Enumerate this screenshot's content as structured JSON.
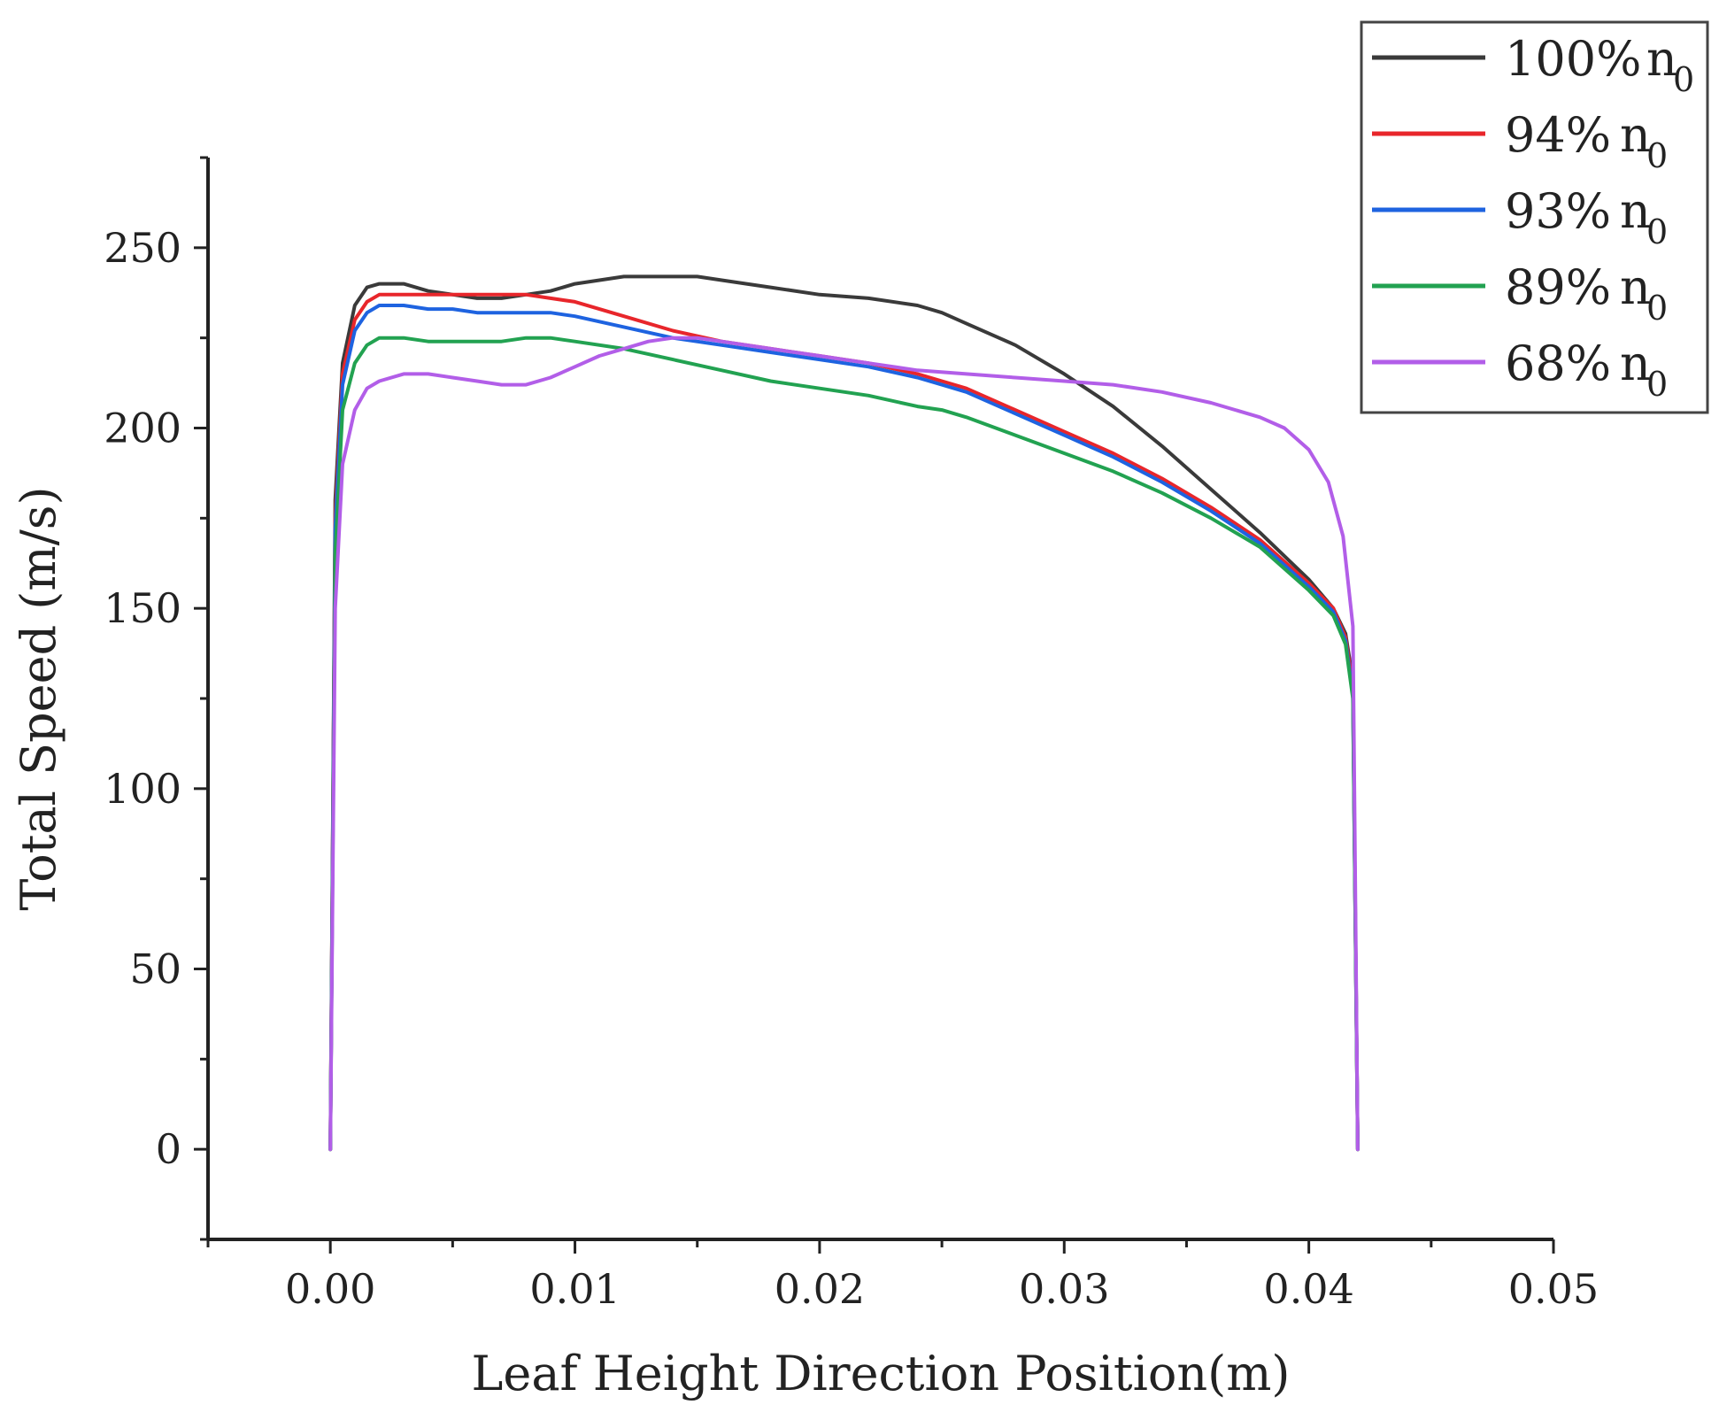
{
  "chart_data": {
    "type": "line",
    "title": "",
    "xlabel": "Leaf Height Direction Position(m)",
    "ylabel": "Total Speed (m/s)",
    "xlim": [
      -0.005,
      0.05
    ],
    "ylim": [
      -25,
      275
    ],
    "x_ticks": [
      0.0,
      0.01,
      0.02,
      0.03,
      0.04,
      0.05
    ],
    "x_tick_labels": [
      "0.00",
      "0.01",
      "0.02",
      "0.03",
      "0.04",
      "0.05"
    ],
    "y_ticks": [
      0,
      50,
      100,
      150,
      200,
      250
    ],
    "y_tick_labels": [
      "0",
      "50",
      "100",
      "150",
      "200",
      "250"
    ],
    "grid": false,
    "legend_position": "top-right",
    "series": [
      {
        "name": "100% n0",
        "label_main": "100%",
        "label_n": "n",
        "label_sub": "0",
        "color": "#3a3a3a",
        "x": [
          0.0,
          0.0002,
          0.0005,
          0.001,
          0.0015,
          0.002,
          0.003,
          0.004,
          0.005,
          0.006,
          0.007,
          0.008,
          0.009,
          0.01,
          0.011,
          0.012,
          0.013,
          0.014,
          0.015,
          0.016,
          0.018,
          0.02,
          0.022,
          0.024,
          0.025,
          0.026,
          0.028,
          0.03,
          0.032,
          0.034,
          0.036,
          0.038,
          0.04,
          0.041,
          0.0415,
          0.0418,
          0.042
        ],
        "y": [
          0,
          180,
          218,
          234,
          239,
          240,
          240,
          238,
          237,
          236,
          236,
          237,
          238,
          240,
          241,
          242,
          242,
          242,
          242,
          241,
          239,
          237,
          236,
          234,
          232,
          229,
          223,
          215,
          206,
          195,
          183,
          171,
          158,
          150,
          143,
          130,
          0
        ]
      },
      {
        "name": "94% n0",
        "label_main": "94%",
        "label_n": "n",
        "label_sub": "0",
        "color": "#e8262b",
        "x": [
          0.0,
          0.0002,
          0.0005,
          0.001,
          0.0015,
          0.002,
          0.003,
          0.004,
          0.005,
          0.006,
          0.007,
          0.008,
          0.009,
          0.01,
          0.012,
          0.014,
          0.016,
          0.018,
          0.02,
          0.022,
          0.024,
          0.025,
          0.026,
          0.028,
          0.03,
          0.032,
          0.034,
          0.036,
          0.038,
          0.04,
          0.041,
          0.0415,
          0.0418,
          0.042
        ],
        "y": [
          0,
          175,
          215,
          230,
          235,
          237,
          237,
          237,
          237,
          237,
          237,
          237,
          236,
          235,
          231,
          227,
          224,
          222,
          220,
          218,
          215,
          213,
          211,
          205,
          199,
          193,
          186,
          178,
          169,
          157,
          150,
          142,
          128,
          0
        ]
      },
      {
        "name": "93% n0",
        "label_main": "93%",
        "label_n": "n",
        "label_sub": "0",
        "color": "#1e63e0",
        "x": [
          0.0,
          0.0002,
          0.0005,
          0.001,
          0.0015,
          0.002,
          0.003,
          0.004,
          0.005,
          0.006,
          0.007,
          0.008,
          0.009,
          0.01,
          0.012,
          0.014,
          0.016,
          0.018,
          0.02,
          0.022,
          0.024,
          0.025,
          0.026,
          0.028,
          0.03,
          0.032,
          0.034,
          0.036,
          0.038,
          0.04,
          0.041,
          0.0415,
          0.0418,
          0.042
        ],
        "y": [
          0,
          172,
          212,
          227,
          232,
          234,
          234,
          233,
          233,
          232,
          232,
          232,
          232,
          231,
          228,
          225,
          223,
          221,
          219,
          217,
          214,
          212,
          210,
          204,
          198,
          192,
          185,
          177,
          168,
          156,
          149,
          141,
          126,
          0
        ]
      },
      {
        "name": "89% n0",
        "label_main": "89%",
        "label_n": "n",
        "label_sub": "0",
        "color": "#22a251",
        "x": [
          0.0,
          0.0002,
          0.0005,
          0.001,
          0.0015,
          0.002,
          0.003,
          0.004,
          0.005,
          0.006,
          0.007,
          0.008,
          0.009,
          0.01,
          0.012,
          0.014,
          0.016,
          0.018,
          0.02,
          0.022,
          0.024,
          0.025,
          0.026,
          0.028,
          0.03,
          0.032,
          0.034,
          0.036,
          0.038,
          0.04,
          0.041,
          0.0415,
          0.0418,
          0.042
        ],
        "y": [
          0,
          165,
          205,
          218,
          223,
          225,
          225,
          224,
          224,
          224,
          224,
          225,
          225,
          224,
          222,
          219,
          216,
          213,
          211,
          209,
          206,
          205,
          203,
          198,
          193,
          188,
          182,
          175,
          167,
          155,
          148,
          140,
          125,
          0
        ]
      },
      {
        "name": "68% n0",
        "label_main": "68%",
        "label_n": "n",
        "label_sub": "0",
        "color": "#b25ee8",
        "x": [
          0.0,
          0.0002,
          0.0005,
          0.001,
          0.0015,
          0.002,
          0.003,
          0.004,
          0.005,
          0.006,
          0.007,
          0.008,
          0.009,
          0.01,
          0.011,
          0.012,
          0.013,
          0.014,
          0.015,
          0.016,
          0.018,
          0.02,
          0.022,
          0.024,
          0.026,
          0.028,
          0.03,
          0.032,
          0.034,
          0.036,
          0.038,
          0.039,
          0.04,
          0.0408,
          0.0414,
          0.0418,
          0.042
        ],
        "y": [
          0,
          150,
          190,
          205,
          211,
          213,
          215,
          215,
          214,
          213,
          212,
          212,
          214,
          217,
          220,
          222,
          224,
          225,
          225,
          224,
          222,
          220,
          218,
          216,
          215,
          214,
          213,
          212,
          210,
          207,
          203,
          200,
          194,
          185,
          170,
          145,
          0
        ]
      }
    ]
  }
}
